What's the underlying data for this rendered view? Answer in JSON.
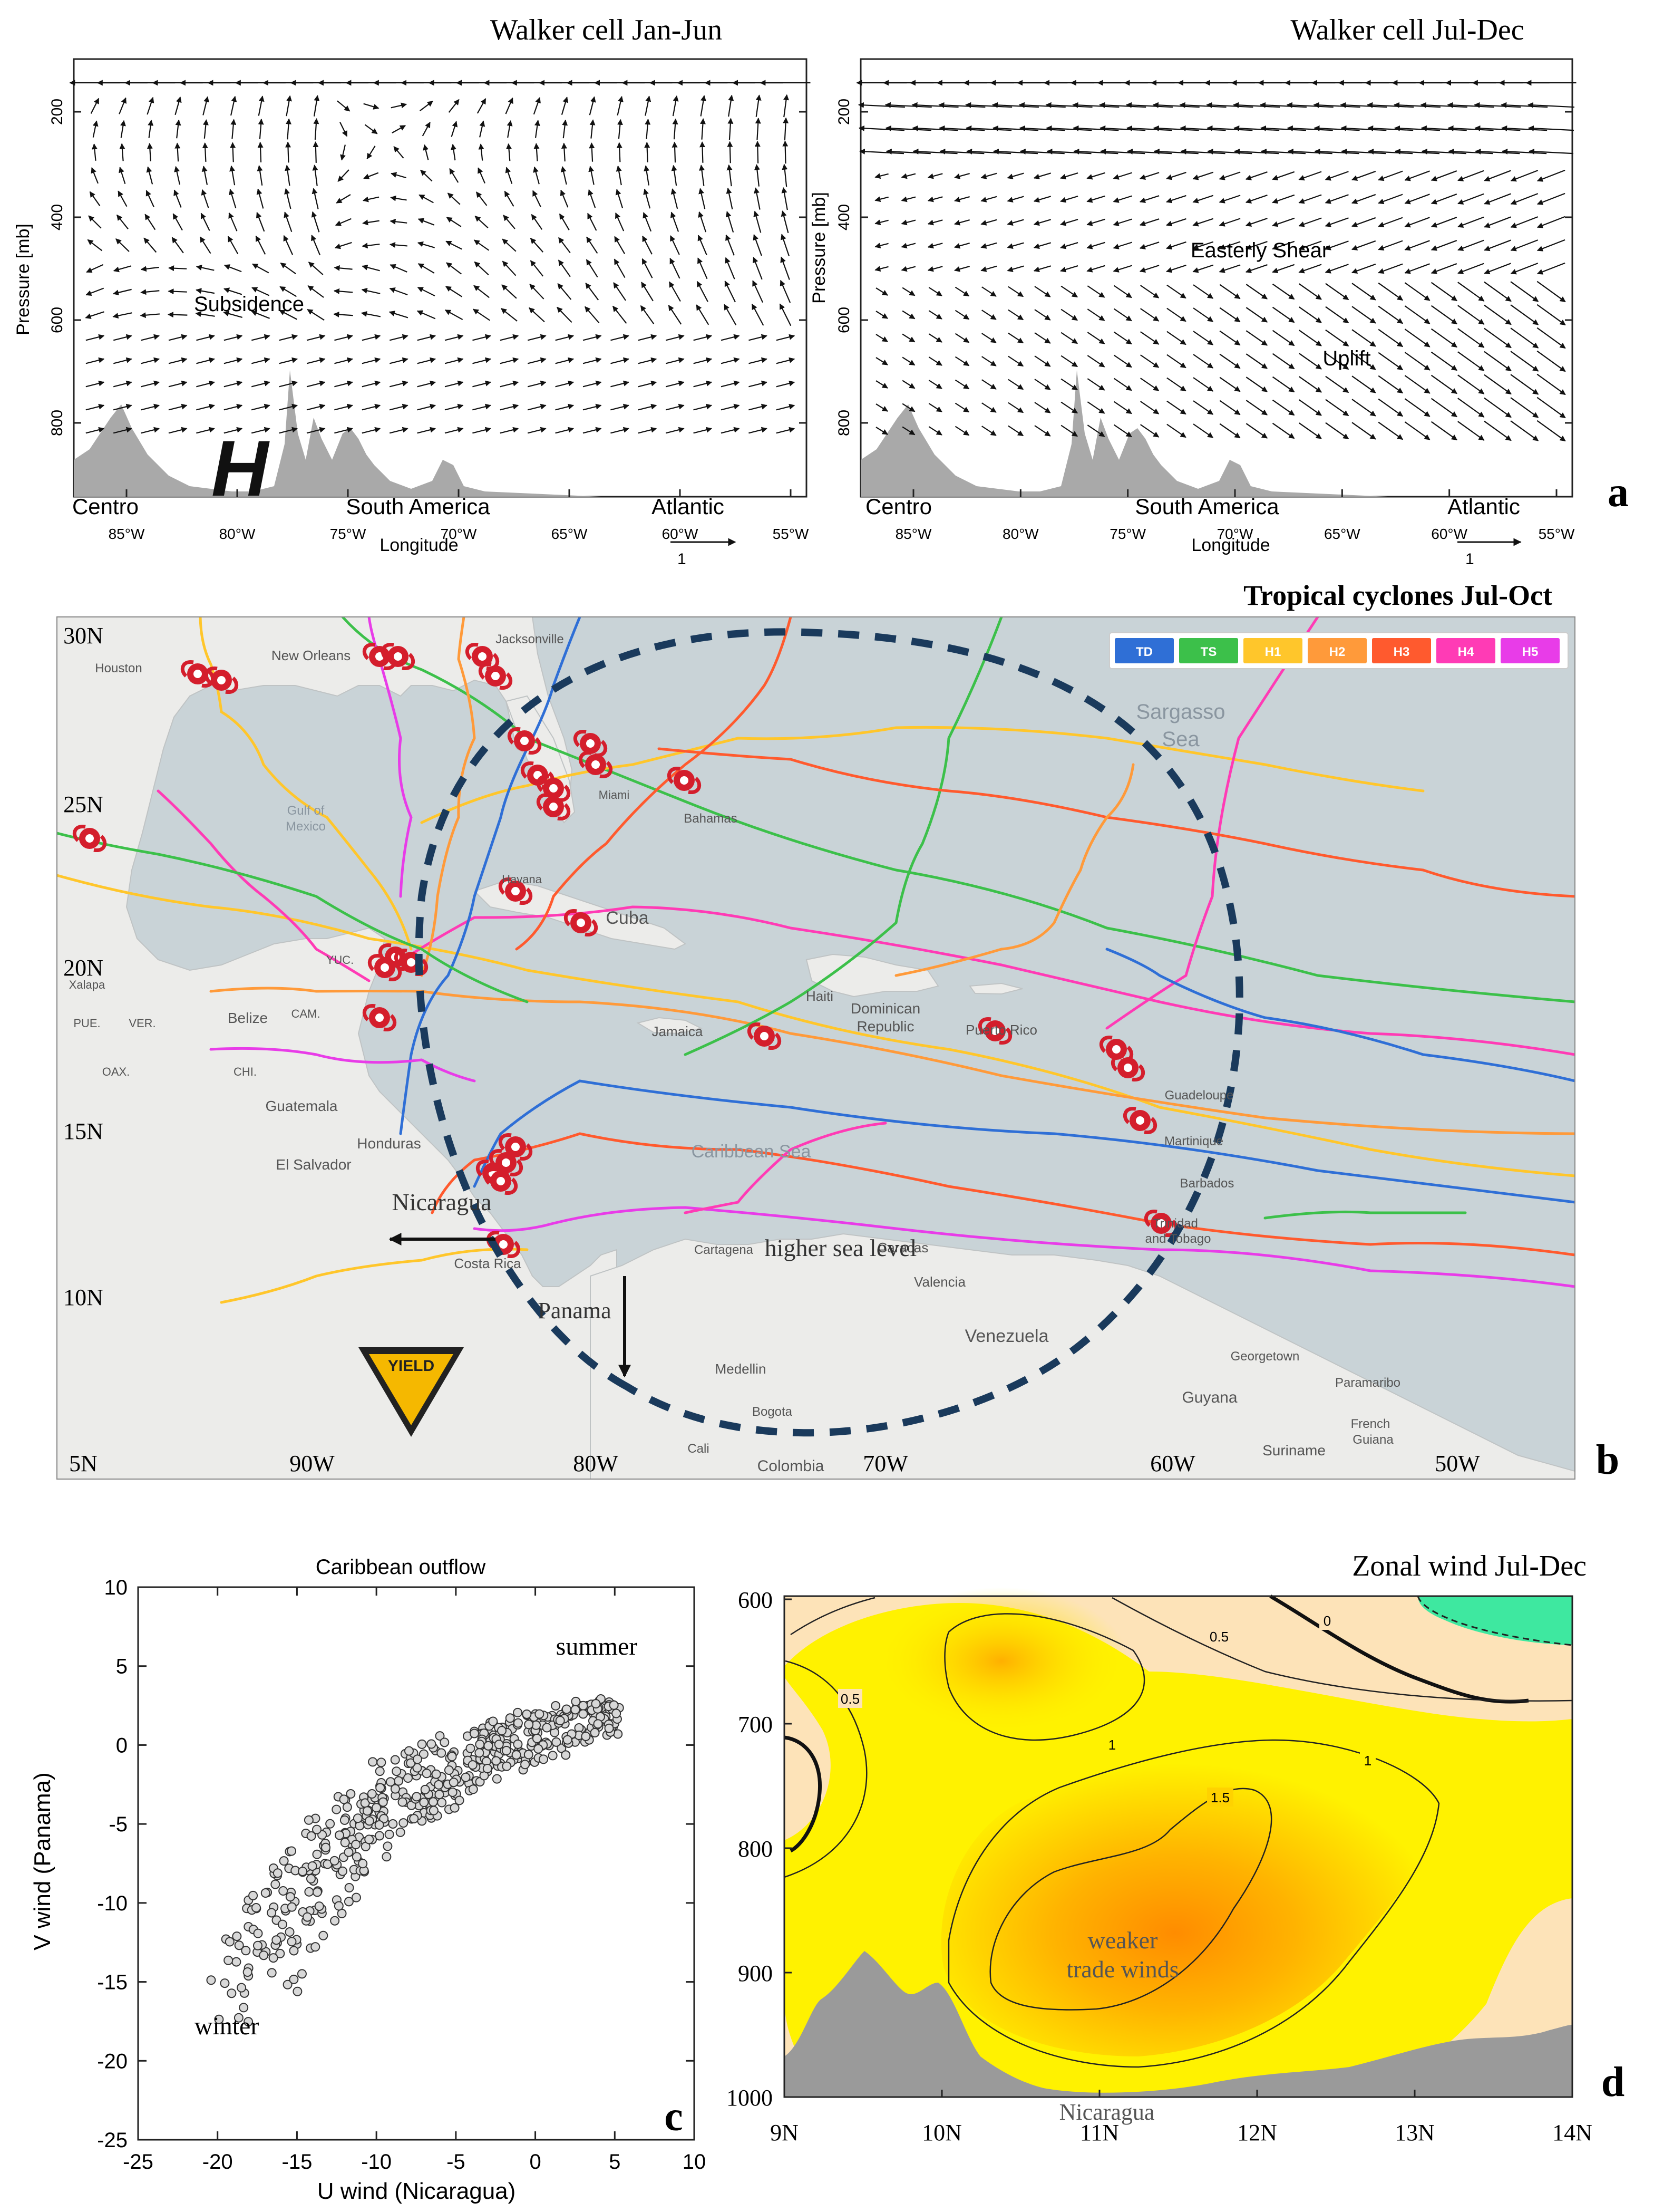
{
  "panel_a": {
    "label": "a",
    "left": {
      "title": "Walker cell Jan-Jun",
      "annotations": [
        "Subsidence",
        "H"
      ],
      "region_labels": [
        "Centro",
        "South America",
        "Atlantic"
      ],
      "x_ticks": [
        "85°W",
        "80°W",
        "75°W",
        "70°W",
        "65°W",
        "60°W",
        "55°W"
      ],
      "y_ticks": [
        "200",
        "400",
        "600",
        "800"
      ],
      "ylabel": "Pressure [mb]",
      "xlabel": "Longitude"
    },
    "right": {
      "title": "Walker cell Jul-Dec",
      "annotations": [
        "Easterly Shear",
        "Uplift"
      ],
      "region_labels": [
        "Centro",
        "South America",
        "Atlantic"
      ],
      "x_ticks": [
        "85°W",
        "80°W",
        "75°W",
        "70°W",
        "65°W",
        "60°W",
        "55°W"
      ],
      "y_ticks": [
        "200",
        "400",
        "600",
        "800"
      ],
      "ylabel": "Pressure [mb]",
      "xlabel": "Longitude"
    },
    "ref_vector_label": "1"
  },
  "panel_b": {
    "label": "b",
    "title": "Tropical cyclones  Jul-Oct",
    "legend": [
      {
        "name": "TD",
        "color": "#2f6fd6"
      },
      {
        "name": "TS",
        "color": "#3cc04a"
      },
      {
        "name": "H1",
        "color": "#ffc62b"
      },
      {
        "name": "H2",
        "color": "#ff9a3a"
      },
      {
        "name": "H3",
        "color": "#ff5a2e"
      },
      {
        "name": "H4",
        "color": "#ff3bb5"
      },
      {
        "name": "H5",
        "color": "#e83ce8"
      }
    ],
    "lat_labels": [
      "30N",
      "25N",
      "20N",
      "15N",
      "10N",
      "5N"
    ],
    "lon_labels": [
      "90W",
      "80W",
      "70W",
      "60W",
      "50W"
    ],
    "annotations": [
      "Nicaragua",
      "Panama",
      "higher sea level",
      "YIELD"
    ],
    "place_names": [
      {
        "name": "Houston"
      },
      {
        "name": "New Orleans"
      },
      {
        "name": "Jacksonville"
      },
      {
        "name": "Gulf of"
      },
      {
        "name": "Mexico"
      },
      {
        "name": "Miami"
      },
      {
        "name": "Bahamas"
      },
      {
        "name": "Sargasso"
      },
      {
        "name": "Sea"
      },
      {
        "name": "Havana"
      },
      {
        "name": "Cuba"
      },
      {
        "name": "YUC."
      },
      {
        "name": "CAM."
      },
      {
        "name": "Xalapa"
      },
      {
        "name": "PUE."
      },
      {
        "name": "VER."
      },
      {
        "name": "OAX."
      },
      {
        "name": "Belize"
      },
      {
        "name": "CHI."
      },
      {
        "name": "Guatemala"
      },
      {
        "name": "Honduras"
      },
      {
        "name": "El Salvador"
      },
      {
        "name": "Costa Rica"
      },
      {
        "name": "Haiti"
      },
      {
        "name": "Dominican"
      },
      {
        "name": "Republic"
      },
      {
        "name": "Jamaica"
      },
      {
        "name": "Puerto Rico"
      },
      {
        "name": "Guadeloupe"
      },
      {
        "name": "Martinique"
      },
      {
        "name": "Barbados"
      },
      {
        "name": "Caribbean Sea"
      },
      {
        "name": "Cartagena"
      },
      {
        "name": "Caracas"
      },
      {
        "name": "Valencia"
      },
      {
        "name": "Trinidad"
      },
      {
        "name": "and Tobago"
      },
      {
        "name": "Venezuela"
      },
      {
        "name": "Georgetown"
      },
      {
        "name": "Paramaribo"
      },
      {
        "name": "Guyana"
      },
      {
        "name": "Suriname"
      },
      {
        "name": "French"
      },
      {
        "name": "Guiana"
      },
      {
        "name": "Medellin"
      },
      {
        "name": "Bogota"
      },
      {
        "name": "Cali"
      },
      {
        "name": "Colombia"
      }
    ]
  },
  "panel_c": {
    "label": "c",
    "chart_data": {
      "type": "scatter",
      "title": "Caribbean outflow",
      "xlabel": "U wind (Nicaragua)",
      "ylabel": "V wind (Panama)",
      "xlim": [
        -25,
        10
      ],
      "ylim": [
        -25,
        10
      ],
      "x_ticks": [
        -25,
        -20,
        -15,
        -10,
        -5,
        0,
        5,
        10
      ],
      "y_ticks": [
        -25,
        -20,
        -15,
        -10,
        -5,
        0,
        5,
        10
      ],
      "annotations": [
        "summer",
        "winter"
      ],
      "cloud_center": [
        [
          -18.5,
          -15.5
        ],
        [
          -17.5,
          -13.5
        ],
        [
          -16.5,
          -12.5
        ],
        [
          -15.5,
          -11
        ],
        [
          -14.5,
          -9.5
        ],
        [
          -13.5,
          -8
        ],
        [
          -12.5,
          -6.5
        ],
        [
          -11.5,
          -5.5
        ],
        [
          -10.5,
          -4.5
        ],
        [
          -9.5,
          -3.5
        ],
        [
          -8.5,
          -3
        ],
        [
          -7.5,
          -2.5
        ],
        [
          -6.5,
          -2
        ],
        [
          -5.5,
          -1.5
        ],
        [
          -4.5,
          -1
        ],
        [
          -3.5,
          -0.5
        ],
        [
          -2.5,
          -0.2
        ],
        [
          -1.5,
          0.2
        ],
        [
          -0.5,
          0.4
        ],
        [
          0.5,
          0.7
        ],
        [
          1.5,
          1.0
        ],
        [
          2.5,
          1.3
        ],
        [
          3.5,
          1.6
        ],
        [
          4.5,
          1.8
        ]
      ],
      "point_count": 520
    }
  },
  "panel_d": {
    "label": "d",
    "chart_data": {
      "type": "heatmap",
      "title": "Zonal wind Jul-Dec",
      "x_ticks": [
        "9N",
        "10N",
        "11N",
        "12N",
        "13N",
        "14N"
      ],
      "y_ticks": [
        "600",
        "700",
        "800",
        "900",
        "1000"
      ],
      "xlim": [
        9,
        14
      ],
      "ylim": [
        600,
        1000
      ],
      "contour_labels": [
        "0",
        "0.5",
        "0.5",
        "1",
        "1",
        "1.5"
      ],
      "annotations": [
        "weaker",
        "trade winds",
        "Nicaragua"
      ],
      "colors": {
        "negative": "#3ee8a0",
        "low": "#fde3b8",
        "mid": "#fff200",
        "high": "#ffb300",
        "peak": "#ff8c00",
        "terrain": "#9a9a9a"
      }
    }
  }
}
